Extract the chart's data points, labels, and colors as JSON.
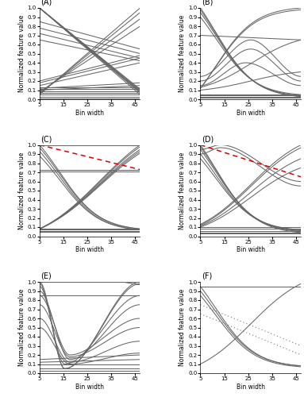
{
  "xlim": [
    5,
    47
  ],
  "ylim": [
    0,
    1.0
  ],
  "xticks": [
    5,
    15,
    25,
    35,
    45
  ],
  "yticks": [
    0,
    0.1,
    0.2,
    0.3,
    0.4,
    0.5,
    0.6,
    0.7,
    0.8,
    0.9,
    1.0
  ],
  "xlabel": "Bin width",
  "ylabel": "Normalized feature value",
  "line_color": "#666666",
  "red_dash_color": "#dd0000",
  "panel_labels": [
    "(A)",
    "(B)",
    "(C)",
    "(D)",
    "(E)",
    "(F)"
  ],
  "figsize": [
    3.83,
    5.0
  ],
  "dpi": 100
}
